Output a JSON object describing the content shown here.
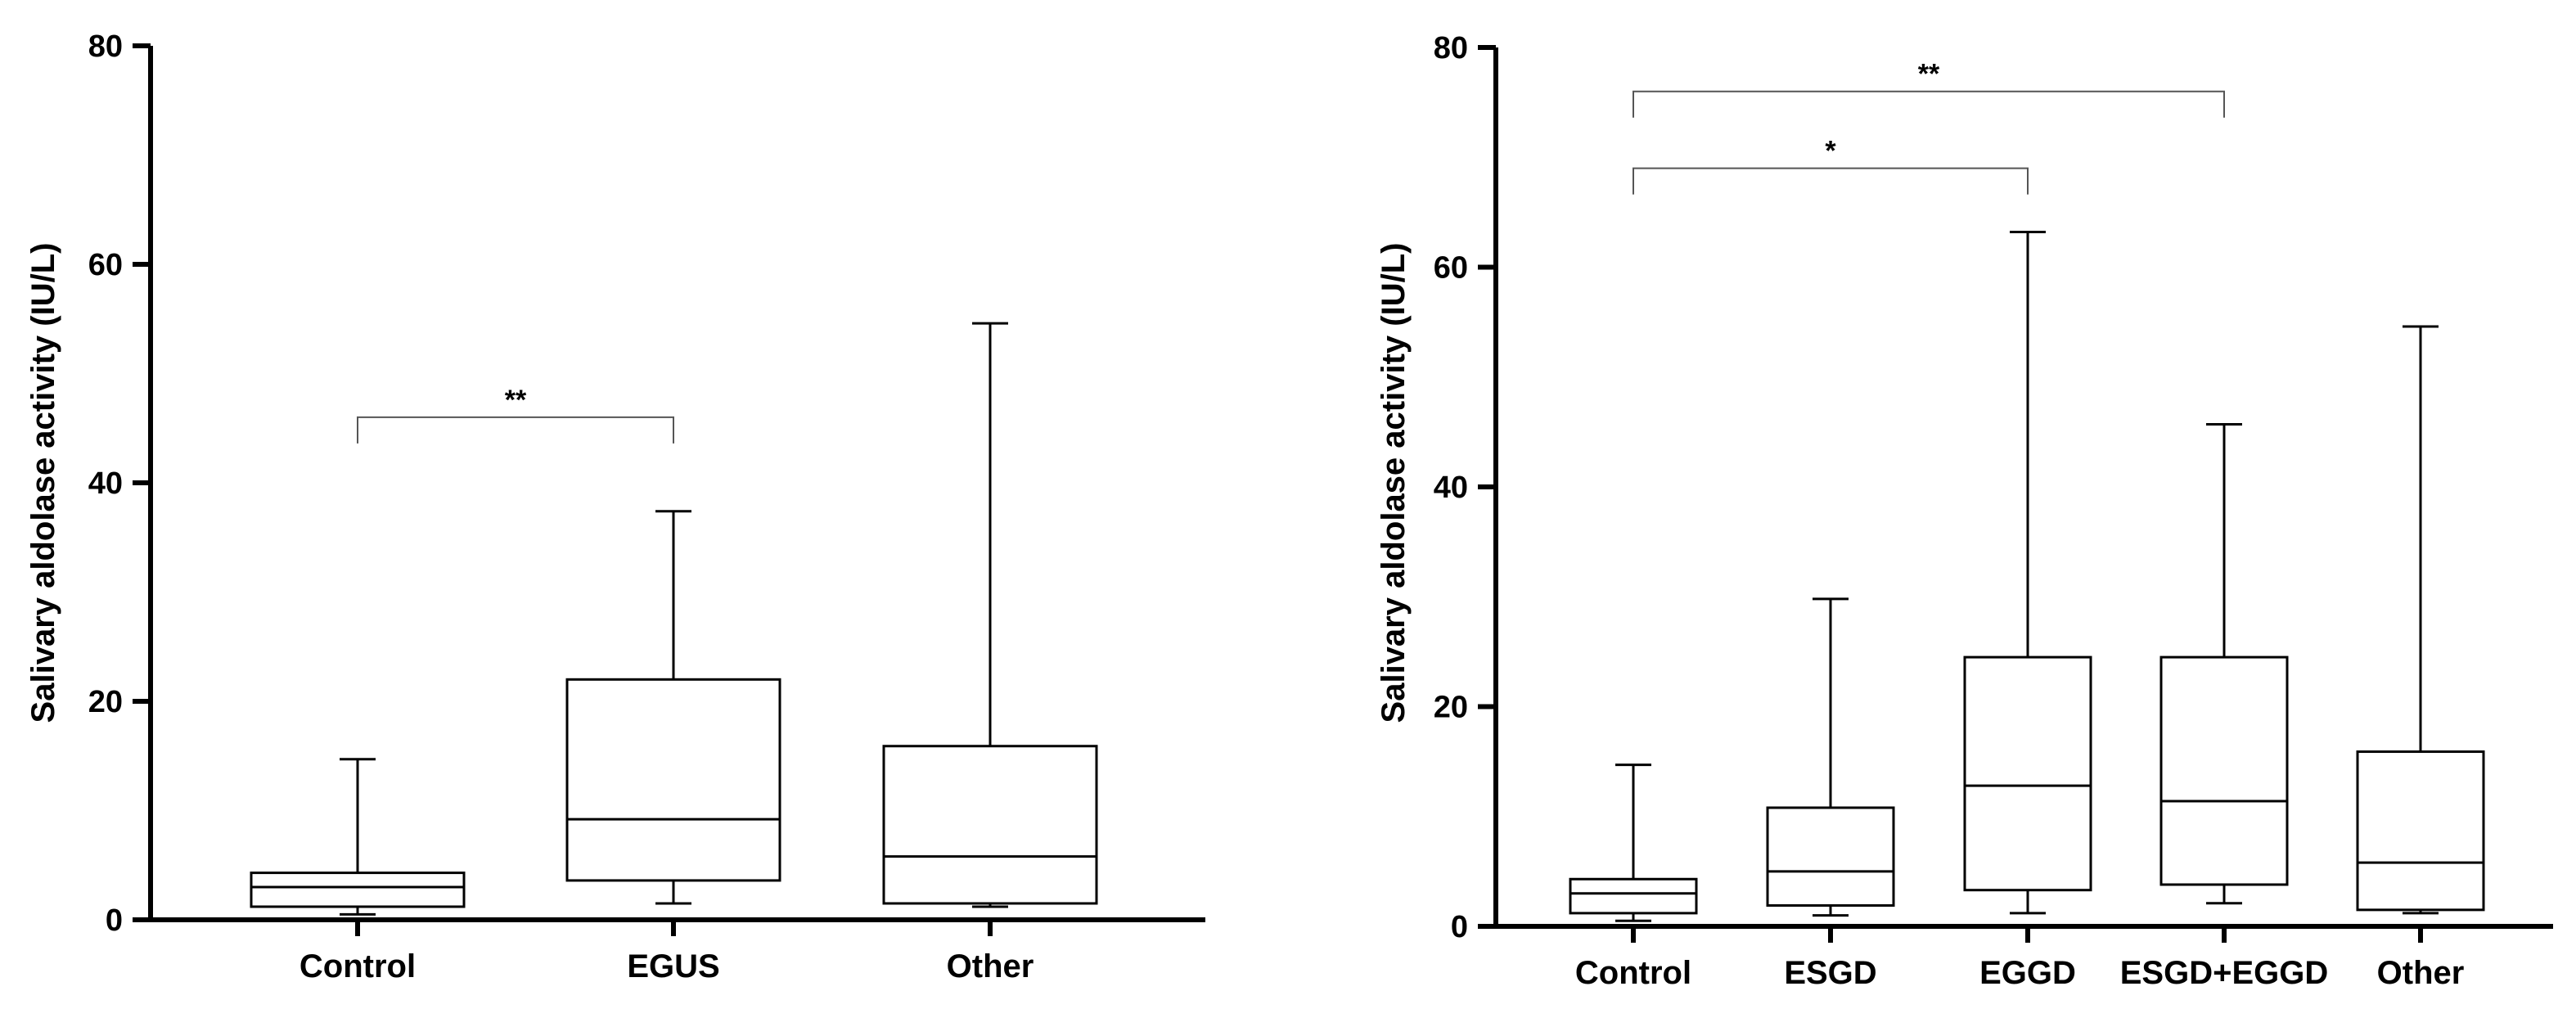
{
  "chart_data": [
    {
      "type": "box",
      "title": "",
      "xlabel": "",
      "ylabel": "Salivary aldolase activity (IU/L)",
      "ylim": [
        0,
        80
      ],
      "yticks": [
        0,
        20,
        40,
        60,
        80
      ],
      "categories": [
        "Control",
        "EGUS",
        "Other"
      ],
      "boxes": [
        {
          "min": 0.5,
          "q1": 1.2,
          "median": 3.0,
          "q3": 4.3,
          "max": 14.7
        },
        {
          "min": 1.5,
          "q1": 3.6,
          "median": 9.2,
          "q3": 22.0,
          "max": 37.4
        },
        {
          "min": 1.2,
          "q1": 1.5,
          "median": 5.8,
          "q3": 15.9,
          "max": 54.6
        }
      ],
      "significance": [
        {
          "from": "Control",
          "to": "EGUS",
          "label": "**",
          "y": 46
        }
      ]
    },
    {
      "type": "box",
      "title": "",
      "xlabel": "",
      "ylabel": "Salivary aldolase activity (IU/L)",
      "ylim": [
        0,
        80
      ],
      "yticks": [
        0,
        20,
        40,
        60,
        80
      ],
      "categories": [
        "Control",
        "ESGD",
        "EGGD",
        "ESGD+EGGD",
        "Other"
      ],
      "boxes": [
        {
          "min": 0.5,
          "q1": 1.2,
          "median": 3.0,
          "q3": 4.3,
          "max": 14.7
        },
        {
          "min": 1.0,
          "q1": 1.9,
          "median": 5.0,
          "q3": 10.8,
          "max": 29.8
        },
        {
          "min": 1.2,
          "q1": 3.3,
          "median": 12.8,
          "q3": 24.5,
          "max": 63.2
        },
        {
          "min": 2.1,
          "q1": 3.8,
          "median": 11.4,
          "q3": 24.5,
          "max": 45.7
        },
        {
          "min": 1.2,
          "q1": 1.5,
          "median": 5.8,
          "q3": 15.9,
          "max": 54.6
        }
      ],
      "significance": [
        {
          "from": "Control",
          "to": "EGGD",
          "label": "*",
          "y": 69
        },
        {
          "from": "Control",
          "to": "ESGD+EGGD",
          "label": "**",
          "y": 76
        }
      ]
    }
  ]
}
